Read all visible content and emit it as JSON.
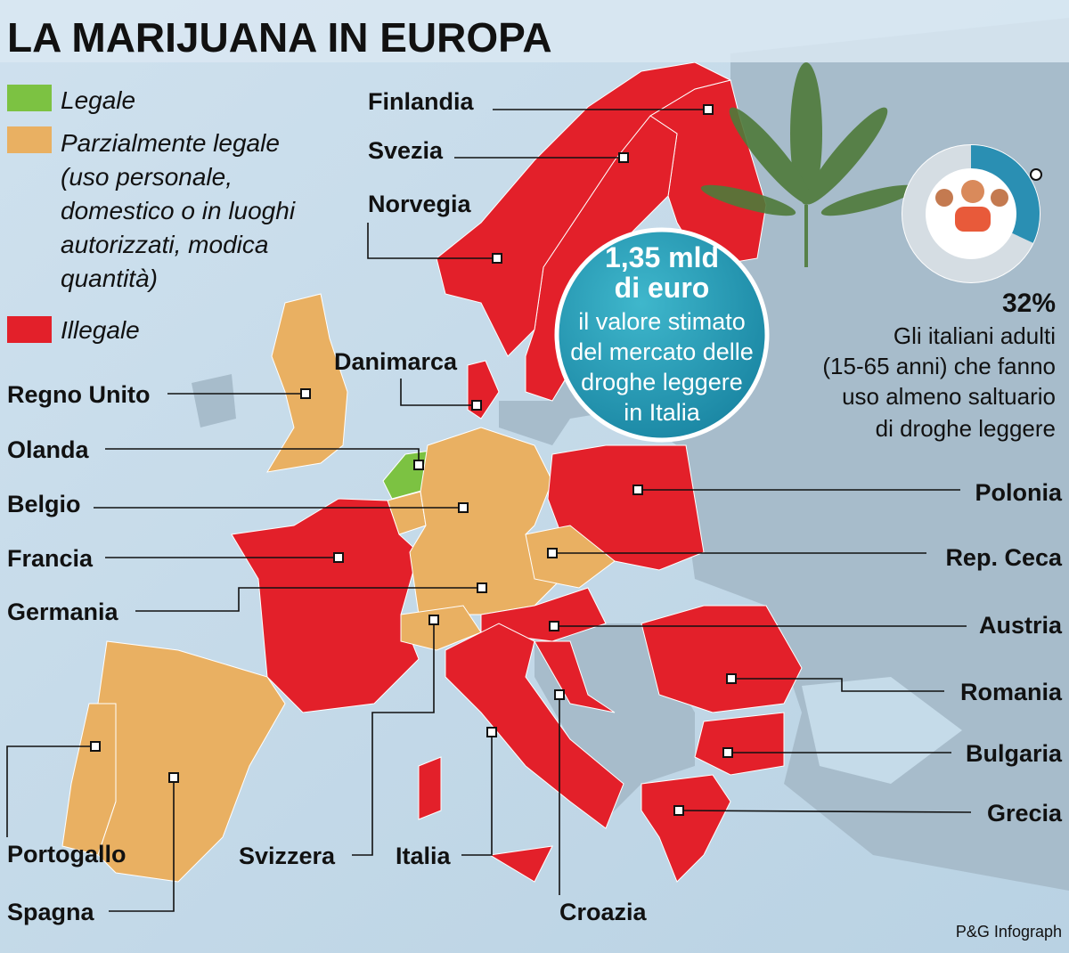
{
  "title": "LA MARIJUANA IN EUROPA",
  "legend": [
    {
      "lines": [
        "Legale"
      ],
      "color": "#7cc242"
    },
    {
      "lines": [
        "Parzialmente legale",
        "(uso personale,",
        "domestico o in luoghi",
        "autorizzati, modica",
        "quantità)"
      ],
      "color": "#e9b062"
    },
    {
      "lines": [
        "Illegale"
      ],
      "color": "#e3202a"
    }
  ],
  "countries": [
    {
      "name": "Finlandia",
      "color": "#e3202a"
    },
    {
      "name": "Svezia",
      "color": "#e3202a"
    },
    {
      "name": "Norvegia",
      "color": "#e3202a"
    },
    {
      "name": "Danimarca",
      "color": "#e3202a"
    },
    {
      "name": "Regno Unito",
      "color": "#e9b062"
    },
    {
      "name": "Olanda",
      "color": "#7cc242"
    },
    {
      "name": "Belgio",
      "color": "#e9b062"
    },
    {
      "name": "Francia",
      "color": "#e3202a"
    },
    {
      "name": "Germania",
      "color": "#e9b062"
    },
    {
      "name": "Polonia",
      "color": "#e3202a"
    },
    {
      "name": "Rep. Ceca",
      "color": "#e9b062"
    },
    {
      "name": "Austria",
      "color": "#e3202a"
    },
    {
      "name": "Romania",
      "color": "#e3202a"
    },
    {
      "name": "Bulgaria",
      "color": "#e3202a"
    },
    {
      "name": "Grecia",
      "color": "#e3202a"
    },
    {
      "name": "Portogallo",
      "color": "#e9b062"
    },
    {
      "name": "Spagna",
      "color": "#e9b062"
    },
    {
      "name": "Svizzera",
      "color": "#e9b062"
    },
    {
      "name": "Italia",
      "color": "#e3202a"
    },
    {
      "name": "Croazia",
      "color": "#e3202a"
    }
  ],
  "highlight": {
    "lines": [
      "1,35 mld",
      "di euro",
      "il valore stimato",
      "del mercato delle",
      "droghe leggere",
      "in Italia"
    ]
  },
  "stat": {
    "value": 32,
    "label": "32%",
    "lines": [
      "Gli italiani adulti",
      "(15-65 anni) che fanno",
      "uso almeno saltuario",
      "di droghe leggere"
    ]
  },
  "credit": "P&G Infograph"
}
